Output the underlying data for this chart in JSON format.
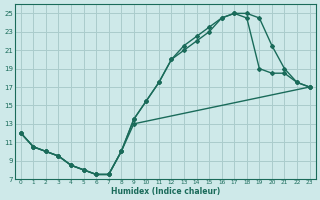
{
  "xlabel": "Humidex (Indice chaleur)",
  "xlim": [
    -0.5,
    23.5
  ],
  "ylim": [
    7,
    26
  ],
  "yticks": [
    7,
    9,
    11,
    13,
    15,
    17,
    19,
    21,
    23,
    25
  ],
  "xticks": [
    0,
    1,
    2,
    3,
    4,
    5,
    6,
    7,
    8,
    9,
    10,
    11,
    12,
    13,
    14,
    15,
    16,
    17,
    18,
    19,
    20,
    21,
    22,
    23
  ],
  "bg_color": "#cee9e9",
  "grid_color": "#aacccc",
  "line_color": "#1a6b5a",
  "line1_x": [
    0,
    1,
    2,
    3,
    4,
    5,
    6,
    7,
    8,
    9,
    10,
    11,
    12,
    13,
    14,
    15,
    16,
    17,
    18,
    19,
    20,
    21,
    22,
    23
  ],
  "line1_y": [
    12,
    10.5,
    10,
    9.5,
    8.5,
    8,
    7.5,
    7.5,
    10,
    13.5,
    15.5,
    17.5,
    20,
    21.5,
    22.5,
    23.5,
    24.5,
    25,
    25,
    24.5,
    21.5,
    19,
    17.5,
    17
  ],
  "line2_x": [
    0,
    1,
    2,
    3,
    4,
    5,
    6,
    7,
    8,
    9,
    10,
    11,
    12,
    13,
    14,
    15,
    16,
    17,
    18,
    19,
    20,
    21,
    22,
    23
  ],
  "line2_y": [
    12,
    10.5,
    10,
    9.5,
    8.5,
    8,
    7.5,
    7.5,
    10,
    13.5,
    15.5,
    17.5,
    20,
    21,
    22,
    23,
    24.5,
    25,
    24.5,
    19,
    18.5,
    18.5,
    17.5,
    17
  ],
  "line3_x": [
    0,
    1,
    2,
    3,
    4,
    5,
    6,
    7,
    8,
    9,
    23
  ],
  "line3_y": [
    12,
    10.5,
    10,
    9.5,
    8.5,
    8,
    7.5,
    7.5,
    10,
    13,
    17
  ],
  "marker": "D",
  "markersize": 2.0,
  "linewidth": 1.0
}
